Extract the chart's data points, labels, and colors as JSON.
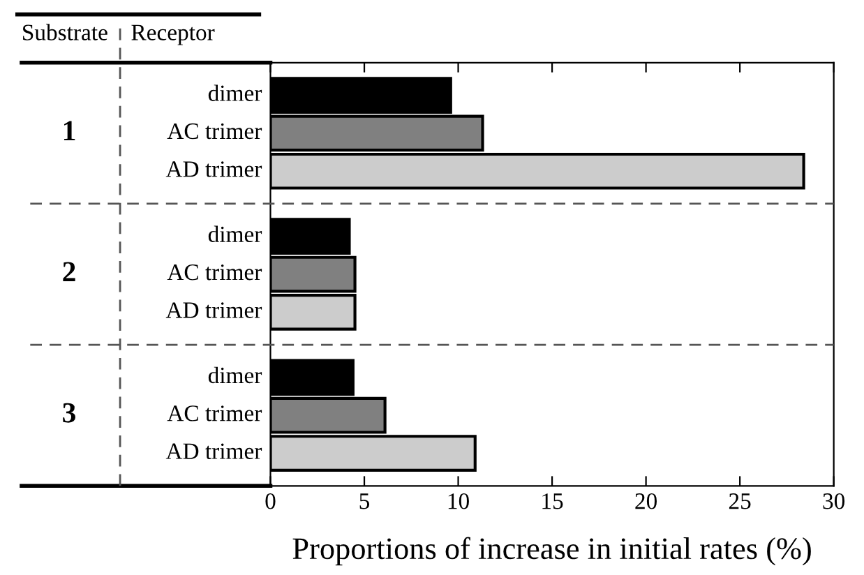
{
  "chart_data": {
    "type": "bar",
    "orientation": "horizontal",
    "categories": [
      "1",
      "2",
      "3"
    ],
    "series": [
      {
        "name": "dimer",
        "color": "#000000",
        "values": [
          9.6,
          4.2,
          4.4
        ]
      },
      {
        "name": "AC trimer",
        "color": "#808080",
        "values": [
          11.3,
          4.5,
          6.1
        ]
      },
      {
        "name": "AD trimer",
        "color": "#cccccc",
        "values": [
          28.4,
          4.5,
          10.9
        ]
      }
    ],
    "xlabel": "Proportions of increase in initial rates (%)",
    "annotations": [
      "Substrate",
      "Receptor"
    ],
    "xlim": [
      0,
      30
    ],
    "xticks": [
      0,
      5,
      10,
      15,
      20,
      25,
      30
    ],
    "grid": false
  }
}
